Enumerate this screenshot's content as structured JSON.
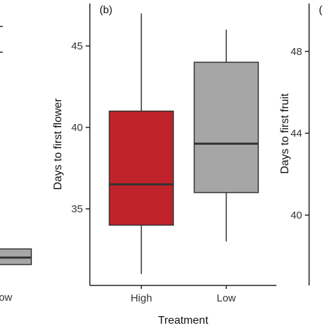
{
  "chart_data": [
    {
      "type": "box",
      "panel": "",
      "xlabel": "",
      "ylabel": "",
      "categories": [
        "",
        "Low"
      ],
      "ytick_labels": [],
      "boxes": [
        {
          "category": "Low",
          "q1": 2.6,
          "median": 3.0,
          "q3": 3.5,
          "color": "#a6a6a6"
        }
      ]
    },
    {
      "type": "box",
      "panel": "(b)",
      "xlabel": "Treatment",
      "ylabel": "Days to first flower",
      "categories": [
        "High",
        "Low"
      ],
      "ylim": [
        31,
        47.5
      ],
      "yticks": [
        35,
        40,
        45
      ],
      "boxes": [
        {
          "category": "High",
          "min": 31,
          "q1": 34,
          "median": 36.5,
          "q3": 41,
          "max": 47,
          "color": "#c0232b"
        },
        {
          "category": "Low",
          "min": 33,
          "q1": 36,
          "median": 39,
          "q3": 44,
          "max": 46,
          "color": "#a6a6a6"
        }
      ]
    },
    {
      "type": "box",
      "panel": "(",
      "xlabel": "",
      "ylabel": "Days to first fruit",
      "yticks": [
        40,
        44,
        48
      ],
      "boxes": []
    }
  ],
  "colors": {
    "high": "#c0232b",
    "low": "#a6a6a6",
    "axis": "#222222",
    "median": "#333333"
  }
}
